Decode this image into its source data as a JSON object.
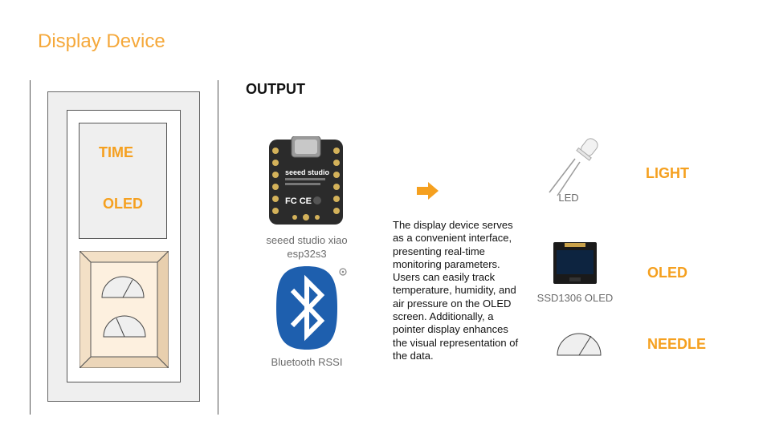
{
  "page": {
    "title": "Display Device"
  },
  "device": {
    "time_label": "TIME",
    "oled_label": "OLED"
  },
  "output": {
    "heading": "OUTPUT",
    "mcu_caption_line1": "seeed studio xiao",
    "mcu_caption_line2": "esp32s3",
    "bluetooth_caption": "Bluetooth RSSI",
    "description": "The display device serves as a convenient interface, presenting real-time monitoring parameters. Users can easily track temperature, humidity, and air pressure on the OLED screen. Additionally, a pointer display enhances the visual representation of the data.",
    "led_caption": "LED",
    "oled_caption": "SSD1306 OLED",
    "light_label": "LIGHT",
    "oled_label": "OLED",
    "needle_label": "NEEDLE"
  },
  "board_text": {
    "brand": "seeed studio",
    "cert": "FC CE"
  },
  "colors": {
    "accent": "#f5a01f",
    "title": "#f5a83a",
    "bluetooth": "#1e5fae",
    "board": "#2b2b2b"
  }
}
